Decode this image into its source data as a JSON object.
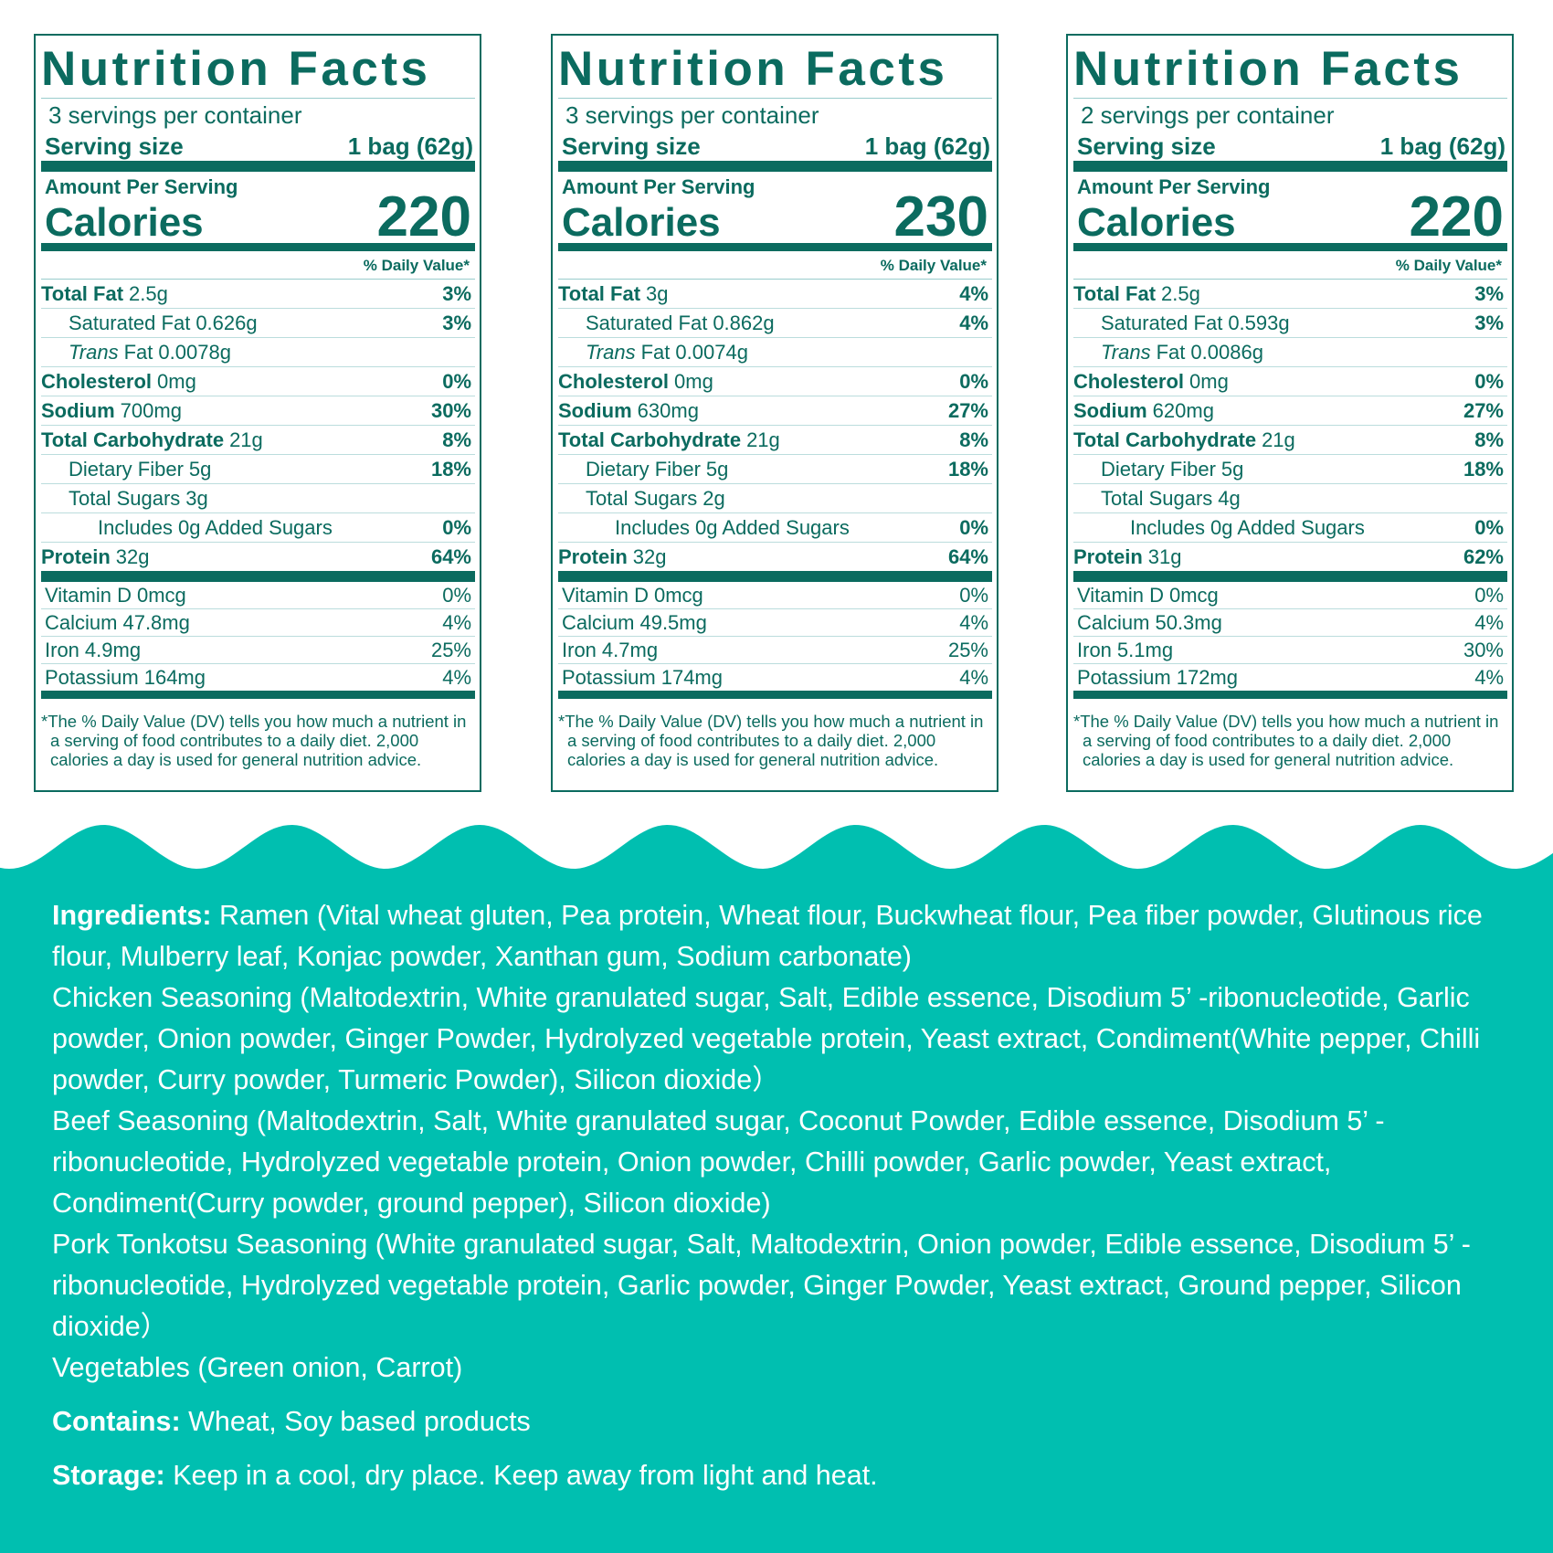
{
  "labels": [
    {
      "title": "Nutrition Facts",
      "servings": "3 servings per container",
      "serving_size_label": "Serving size",
      "serving_size": "1 bag (62g)",
      "amount_per_serving": "Amount Per Serving",
      "calories_label": "Calories",
      "calories": 220,
      "dv_header": "% Daily Value*",
      "nutrients": [
        {
          "name": "Total Fat",
          "amount": "2.5g",
          "dv": "3%"
        },
        {
          "name": "Saturated Fat",
          "amount": "0.626g",
          "dv": "3%"
        },
        {
          "prefix": "Trans",
          "name": "Fat",
          "amount": "0.0078g"
        },
        {
          "name": "Cholesterol",
          "amount": "0mg",
          "dv": "0%"
        },
        {
          "name": "Sodium",
          "amount": "700mg",
          "dv": "30%"
        },
        {
          "name": "Total Carbohydrate",
          "amount": "21g",
          "dv": "8%"
        },
        {
          "name": "Dietary Fiber",
          "amount": "5g",
          "dv": "18%"
        },
        {
          "name": "Total Sugars",
          "amount": "3g"
        },
        {
          "name": "Includes 0g Added Sugars",
          "dv": "0%"
        },
        {
          "name": "Protein",
          "amount": "32g",
          "dv": "64%"
        }
      ],
      "vitamins": [
        {
          "name": "Vitamin D",
          "amount": "0mcg",
          "dv": "0%"
        },
        {
          "name": "Calcium",
          "amount": "47.8mg",
          "dv": "4%"
        },
        {
          "name": "Iron",
          "amount": "4.9mg",
          "dv": "25%"
        },
        {
          "name": "Potassium",
          "amount": "164mg",
          "dv": "4%"
        }
      ],
      "footnote": "*The % Daily Value (DV) tells you how much a nutrient in a serving of food contributes to a daily diet. 2,000 calories a day is used for general nutrition advice."
    },
    {
      "title": "Nutrition Facts",
      "servings": "3 servings per container",
      "serving_size_label": "Serving size",
      "serving_size": "1 bag (62g)",
      "amount_per_serving": "Amount Per Serving",
      "calories_label": "Calories",
      "calories": 230,
      "dv_header": "% Daily Value*",
      "nutrients": [
        {
          "name": "Total Fat",
          "amount": "3g",
          "dv": "4%"
        },
        {
          "name": "Saturated Fat",
          "amount": "0.862g",
          "dv": "4%"
        },
        {
          "prefix": "Trans",
          "name": "Fat",
          "amount": "0.0074g"
        },
        {
          "name": "Cholesterol",
          "amount": "0mg",
          "dv": "0%"
        },
        {
          "name": "Sodium",
          "amount": "630mg",
          "dv": "27%"
        },
        {
          "name": "Total Carbohydrate",
          "amount": "21g",
          "dv": "8%"
        },
        {
          "name": "Dietary Fiber",
          "amount": "5g",
          "dv": "18%"
        },
        {
          "name": "Total Sugars",
          "amount": "2g"
        },
        {
          "name": "Includes 0g Added Sugars",
          "dv": "0%"
        },
        {
          "name": "Protein",
          "amount": "32g",
          "dv": "64%"
        }
      ],
      "vitamins": [
        {
          "name": "Vitamin D",
          "amount": "0mcg",
          "dv": "0%"
        },
        {
          "name": "Calcium",
          "amount": "49.5mg",
          "dv": "4%"
        },
        {
          "name": "Iron",
          "amount": "4.7mg",
          "dv": "25%"
        },
        {
          "name": "Potassium",
          "amount": "174mg",
          "dv": "4%"
        }
      ],
      "footnote": "*The % Daily Value (DV) tells you how much a nutrient in a serving of food contributes to a daily diet. 2,000 calories a day is used for general nutrition advice."
    },
    {
      "title": "Nutrition Facts",
      "servings": "2 servings per container",
      "serving_size_label": "Serving size",
      "serving_size": "1 bag (62g)",
      "amount_per_serving": "Amount Per Serving",
      "calories_label": "Calories",
      "calories": 220,
      "dv_header": "% Daily Value*",
      "nutrients": [
        {
          "name": "Total Fat",
          "amount": "2.5g",
          "dv": "3%"
        },
        {
          "name": "Saturated Fat",
          "amount": "0.593g",
          "dv": "3%"
        },
        {
          "prefix": "Trans",
          "name": "Fat",
          "amount": "0.0086g"
        },
        {
          "name": "Cholesterol",
          "amount": "0mg",
          "dv": "0%"
        },
        {
          "name": "Sodium",
          "amount": "620mg",
          "dv": "27%"
        },
        {
          "name": "Total Carbohydrate",
          "amount": "21g",
          "dv": "8%"
        },
        {
          "name": "Dietary Fiber",
          "amount": "5g",
          "dv": "18%"
        },
        {
          "name": "Total Sugars",
          "amount": "4g"
        },
        {
          "name": "Includes 0g Added Sugars",
          "dv": "0%"
        },
        {
          "name": "Protein",
          "amount": "31g",
          "dv": "62%"
        }
      ],
      "vitamins": [
        {
          "name": "Vitamin D",
          "amount": "0mcg",
          "dv": "0%"
        },
        {
          "name": "Calcium",
          "amount": "50.3mg",
          "dv": "4%"
        },
        {
          "name": "Iron",
          "amount": "5.1mg",
          "dv": "30%"
        },
        {
          "name": "Potassium",
          "amount": "172mg",
          "dv": "4%"
        }
      ],
      "footnote": "*The % Daily Value (DV) tells you how much a nutrient in a serving of food contributes to a daily diet. 2,000 calories a day is used for general nutrition advice."
    }
  ],
  "ingredients": {
    "label": "Ingredients:",
    "lines": [
      "Ramen (Vital wheat gluten, Pea protein, Wheat flour, Buckwheat flour, Pea fiber powder, Glutinous rice flour, Mulberry leaf, Konjac powder, Xanthan gum, Sodium carbonate)",
      "Chicken Seasoning (Maltodextrin, White granulated sugar, Salt, Edible essence, Disodium 5’ -ribonucleotide, Garlic powder, Onion powder, Ginger Powder, Hydrolyzed vegetable protein, Yeast extract, Condiment(White pepper,  Chilli powder, Curry powder, Turmeric Powder), Silicon dioxide）",
      "Beef Seasoning (Maltodextrin, Salt, White granulated sugar, Coconut Powder, Edible essence, Disodium 5’ -ribonucleotide, Hydrolyzed vegetable protein, Onion powder, Chilli powder, Garlic powder, Yeast extract, Condiment(Curry powder, ground pepper), Silicon dioxide)",
      "Pork Tonkotsu Seasoning (White granulated sugar, Salt, Maltodextrin, Onion powder, Edible essence, Disodium 5’ -ribonucleotide, Hydrolyzed vegetable protein, Garlic powder,  Ginger Powder, Yeast extract, Ground pepper, Silicon dioxide）",
      "Vegetables (Green onion, Carrot)"
    ]
  },
  "contains": {
    "label": "Contains:",
    "text": "Wheat, Soy based products"
  },
  "storage": {
    "label": "Storage:",
    "text": "Keep in a cool, dry place. Keep away from light and heat."
  }
}
